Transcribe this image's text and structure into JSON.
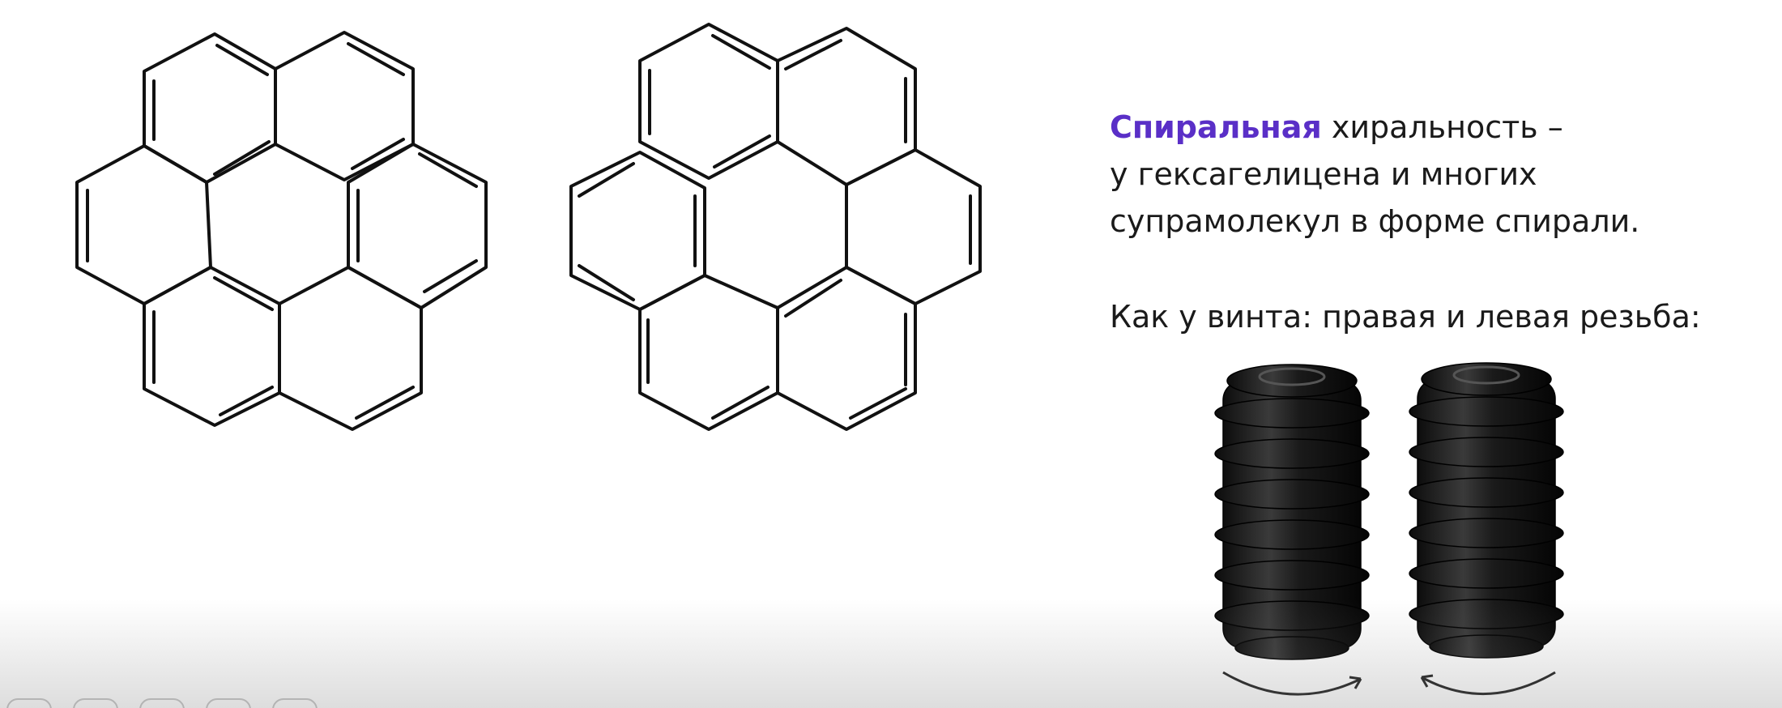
{
  "heading": {
    "accent_word": "Спиральная",
    "rest_line1": " хиральность –",
    "line2": "у гексагелицена и многих",
    "line3": "супрамолекул в форме спирали."
  },
  "screw_caption": "Как у винта: правая и левая резьба:",
  "colors": {
    "accent": "#5a2fc7",
    "text": "#1a1a1a",
    "bond": "#111111",
    "screw": "#1c1c1c"
  },
  "figures": {
    "molecule_left": "hexahelicene-structure",
    "molecule_right": "hexahelicene-enantiomer-structure",
    "screws": "right-and-left-thread-screws"
  }
}
